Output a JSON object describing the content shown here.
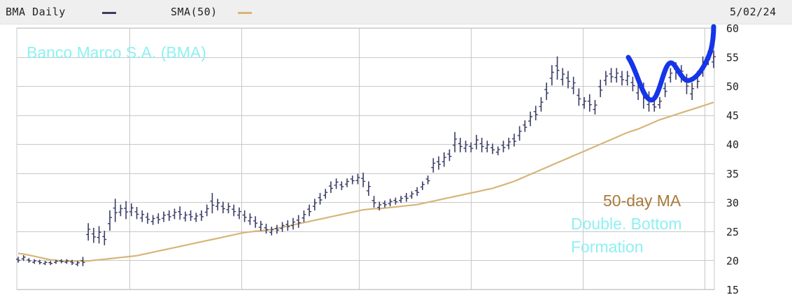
{
  "header": {
    "series_label": "BMA Daily",
    "ma_label": "SMA(50)",
    "date": "5/02/24"
  },
  "colors": {
    "price": "#3a3d66",
    "ma": "#d7b57a",
    "grid": "#c8c8c8",
    "annotation_cyan": "#8ef0f2",
    "annotation_brown": "#a87a3a",
    "annotation_blue": "#1535e8",
    "background": "#ffffff",
    "header_bg": "#efefef"
  },
  "annotations": {
    "company": "Banco Marco S.A. (BMA)",
    "ma_note": "50-day MA",
    "pattern_line1": "Double. Bottom",
    "pattern_line2": "Formation"
  },
  "chart_data": {
    "type": "line",
    "title": "",
    "xlabel": "",
    "ylabel": "",
    "ylim": [
      15,
      60
    ],
    "yticks": [
      15,
      20,
      25,
      30,
      35,
      40,
      45,
      50,
      55,
      60
    ],
    "grid": true,
    "legend": "top",
    "series": [
      {
        "name": "BMA Daily",
        "style": "ohlc-bars",
        "high": [
          20.6,
          20.9,
          20.4,
          20.2,
          20.1,
          19.9,
          19.9,
          20.1,
          20.2,
          20.2,
          20.1,
          19.9,
          20.6,
          26.4,
          25.6,
          25.9,
          25.1,
          28.6,
          30.6,
          29.6,
          30.2,
          29.8,
          29.2,
          28.6,
          28.2,
          27.8,
          28.1,
          28.4,
          28.6,
          28.9,
          29.3,
          28.4,
          28.6,
          28.2,
          28.6,
          29.6,
          31.6,
          30.6,
          30.1,
          29.9,
          29.6,
          29.1,
          28.6,
          28.1,
          27.6,
          26.8,
          26.3,
          25.8,
          26.1,
          26.6,
          26.9,
          27.3,
          27.8,
          28.6,
          29.6,
          30.6,
          31.6,
          32.3,
          33.6,
          34.1,
          33.6,
          34.1,
          34.6,
          34.9,
          35.1,
          33.6,
          31.1,
          30.1,
          30.3,
          30.6,
          30.8,
          31.1,
          31.6,
          31.9,
          32.6,
          33.6,
          34.6,
          37.6,
          37.9,
          38.6,
          39.1,
          42.1,
          41.1,
          40.6,
          40.3,
          41.6,
          41.1,
          40.6,
          40.1,
          39.6,
          40.6,
          41.1,
          41.8,
          43.1,
          44.1,
          45.6,
          46.6,
          48.1,
          50.6,
          53.6,
          55.1,
          53.1,
          52.6,
          51.6,
          49.6,
          48.1,
          48.6,
          47.6,
          51.1,
          52.6,
          53.1,
          53.1,
          52.6,
          52.6,
          51.6,
          51.1,
          50.6,
          49.1,
          47.6,
          48.1,
          50.6,
          53.1,
          54.1,
          53.6,
          52.1,
          50.6,
          52.6,
          55.1,
          56.1,
          56.1
        ],
        "low": [
          19.6,
          19.9,
          19.6,
          19.4,
          19.3,
          19.2,
          19.2,
          19.4,
          19.5,
          19.4,
          19.2,
          19.0,
          19.0,
          23.4,
          23.0,
          22.9,
          22.6,
          25.1,
          26.6,
          27.6,
          27.1,
          27.6,
          27.1,
          26.6,
          26.3,
          26.1,
          26.3,
          26.6,
          26.8,
          27.1,
          27.0,
          26.7,
          26.8,
          26.6,
          26.8,
          27.6,
          28.1,
          28.6,
          28.1,
          28.1,
          27.6,
          27.1,
          26.6,
          26.1,
          25.6,
          25.1,
          24.6,
          24.3,
          24.6,
          24.9,
          25.1,
          25.3,
          25.6,
          26.6,
          27.6,
          28.6,
          29.6,
          30.6,
          31.6,
          32.3,
          32.1,
          32.6,
          33.1,
          33.1,
          32.6,
          31.1,
          29.1,
          28.6,
          29.1,
          29.3,
          29.6,
          29.9,
          30.1,
          30.6,
          31.1,
          32.1,
          33.1,
          35.1,
          35.6,
          36.1,
          37.1,
          38.6,
          38.6,
          38.6,
          38.6,
          39.1,
          38.6,
          38.6,
          38.3,
          38.1,
          38.6,
          39.1,
          39.6,
          40.6,
          42.1,
          43.1,
          44.1,
          45.6,
          47.6,
          50.1,
          51.1,
          50.1,
          49.6,
          48.6,
          46.6,
          46.1,
          45.6,
          45.1,
          48.1,
          50.1,
          50.6,
          50.6,
          50.1,
          50.1,
          49.1,
          47.6,
          46.1,
          45.6,
          45.6,
          46.1,
          48.1,
          50.6,
          51.1,
          50.6,
          48.6,
          47.6,
          49.6,
          51.6,
          53.6,
          53.1
        ]
      },
      {
        "name": "SMA(50)",
        "style": "line",
        "values": [
          21.2,
          21.1,
          20.9,
          20.7,
          20.5,
          20.3,
          20.1,
          20.0,
          19.9,
          19.9,
          19.9,
          19.9,
          19.9,
          19.9,
          20.0,
          20.1,
          20.2,
          20.3,
          20.4,
          20.5,
          20.6,
          20.7,
          20.8,
          21.0,
          21.2,
          21.4,
          21.6,
          21.8,
          22.0,
          22.2,
          22.4,
          22.6,
          22.8,
          23.0,
          23.2,
          23.4,
          23.6,
          23.8,
          24.0,
          24.2,
          24.4,
          24.6,
          24.8,
          24.9,
          25.0,
          25.1,
          25.2,
          25.3,
          25.5,
          25.7,
          25.9,
          26.1,
          26.3,
          26.5,
          26.7,
          26.9,
          27.1,
          27.3,
          27.5,
          27.7,
          27.9,
          28.1,
          28.3,
          28.5,
          28.7,
          28.8,
          28.9,
          28.9,
          29.0,
          29.1,
          29.2,
          29.3,
          29.4,
          29.5,
          29.6,
          29.8,
          30.0,
          30.2,
          30.4,
          30.6,
          30.8,
          31.0,
          31.2,
          31.4,
          31.6,
          31.8,
          32.0,
          32.2,
          32.4,
          32.7,
          33.0,
          33.3,
          33.6,
          34.0,
          34.4,
          34.8,
          35.2,
          35.6,
          36.0,
          36.4,
          36.8,
          37.2,
          37.6,
          38.0,
          38.4,
          38.8,
          39.2,
          39.6,
          40.0,
          40.4,
          40.8,
          41.2,
          41.6,
          42.0,
          42.3,
          42.6,
          43.0,
          43.4,
          43.8,
          44.2,
          44.5,
          44.8,
          45.1,
          45.4,
          45.7,
          46.0,
          46.3,
          46.6,
          46.9,
          47.2
        ]
      }
    ]
  }
}
